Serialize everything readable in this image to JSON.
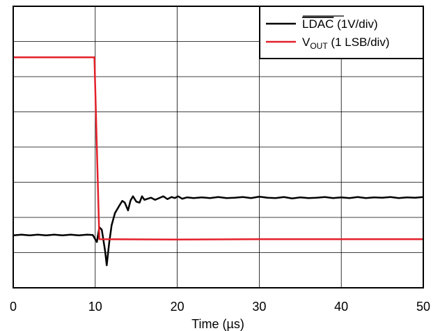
{
  "chart_data": {
    "type": "line",
    "xlabel_prefix": "Time (",
    "xlabel_unit": "µs",
    "xlabel_suffix": ")",
    "xlim": [
      0,
      50
    ],
    "ylim": [
      0,
      8
    ],
    "y_div_label": "div",
    "x_ticks": [
      "0",
      "10",
      "20",
      "30",
      "40",
      "50"
    ],
    "grid": true,
    "legend_position": "top-right",
    "series": [
      {
        "name": "LDAC (1V/div)",
        "legend_overline": "LDAC",
        "legend_rest": " (1V/div)",
        "color": "#000000",
        "x": [
          0,
          1,
          2,
          3,
          4,
          5,
          6,
          7,
          8,
          9,
          9.7,
          10.2,
          10.5,
          10.8,
          11.2,
          11.4,
          11.7,
          12.0,
          12.4,
          12.9,
          13.3,
          13.6,
          14.0,
          14.3,
          14.6,
          15.0,
          15.4,
          15.7,
          16.0,
          16.4,
          16.8,
          17.3,
          17.8,
          18.3,
          18.8,
          19.3,
          19.7,
          20.1,
          20.6,
          21.2,
          22,
          23,
          24,
          25,
          26,
          27,
          28,
          29,
          30,
          31,
          32,
          33,
          34,
          35,
          36,
          37,
          38,
          39,
          40,
          41,
          42,
          43,
          44,
          45,
          46,
          47,
          48,
          49,
          50
        ],
        "y": [
          1.49,
          1.51,
          1.49,
          1.51,
          1.49,
          1.51,
          1.49,
          1.51,
          1.49,
          1.51,
          1.5,
          1.3,
          1.72,
          1.65,
          1.05,
          0.64,
          1.28,
          1.78,
          2.12,
          2.32,
          2.47,
          2.42,
          2.2,
          2.48,
          2.6,
          2.45,
          2.42,
          2.6,
          2.5,
          2.53,
          2.56,
          2.5,
          2.55,
          2.6,
          2.52,
          2.58,
          2.55,
          2.6,
          2.53,
          2.57,
          2.55,
          2.57,
          2.55,
          2.58,
          2.55,
          2.56,
          2.58,
          2.55,
          2.59,
          2.56,
          2.55,
          2.58,
          2.54,
          2.57,
          2.55,
          2.56,
          2.58,
          2.55,
          2.57,
          2.55,
          2.58,
          2.55,
          2.57,
          2.56,
          2.58,
          2.55,
          2.57,
          2.56,
          2.58
        ]
      },
      {
        "name": "VOUT (1 LSB/div)",
        "legend_main": "V",
        "legend_sub": "OUT",
        "legend_rest": " (1 LSB/div)",
        "color": "#e4202a",
        "x": [
          0,
          9.9,
          10.5,
          20,
          30,
          40,
          50
        ],
        "y": [
          6.55,
          6.55,
          1.38,
          1.37,
          1.38,
          1.38,
          1.38
        ]
      }
    ]
  }
}
